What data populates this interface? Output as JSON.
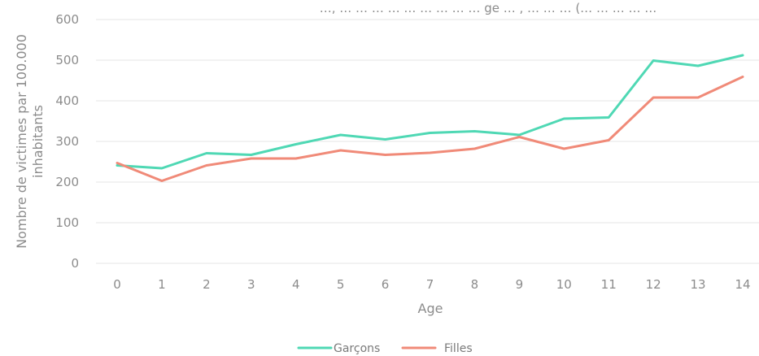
{
  "chart_data": {
    "type": "line",
    "title": "…, … … … … … … … … … ge … , … … … (… … … … …",
    "xlabel": "Age",
    "ylabel": "Nombre de victimes par 100.000 inhabitants",
    "ylabel_lines": [
      "Nombre de victimes par 100.000",
      "inhabitants"
    ],
    "x": [
      0,
      1,
      2,
      3,
      4,
      5,
      6,
      7,
      8,
      9,
      10,
      11,
      12,
      13,
      14
    ],
    "x_tick_labels": [
      "0",
      "1",
      "2",
      "3",
      "4",
      "5",
      "6",
      "7",
      "8",
      "9",
      "10",
      "11",
      "12",
      "13",
      "14"
    ],
    "ylim": [
      0,
      600
    ],
    "y_ticks": [
      0,
      100,
      200,
      300,
      400,
      500,
      600
    ],
    "y_tick_labels": [
      "0",
      "100",
      "200",
      "300",
      "400",
      "500",
      "600"
    ],
    "grid": true,
    "legend_position": "bottom",
    "series": [
      {
        "name": "Garçons",
        "color": "#4fd8b4",
        "values": [
          241,
          234,
          271,
          267,
          293,
          316,
          305,
          321,
          325,
          316,
          356,
          359,
          499,
          486,
          512
        ]
      },
      {
        "name": "Filles",
        "color": "#f08a78",
        "values": [
          247,
          203,
          241,
          258,
          258,
          278,
          267,
          272,
          282,
          311,
          282,
          303,
          408,
          408,
          459
        ]
      }
    ]
  }
}
